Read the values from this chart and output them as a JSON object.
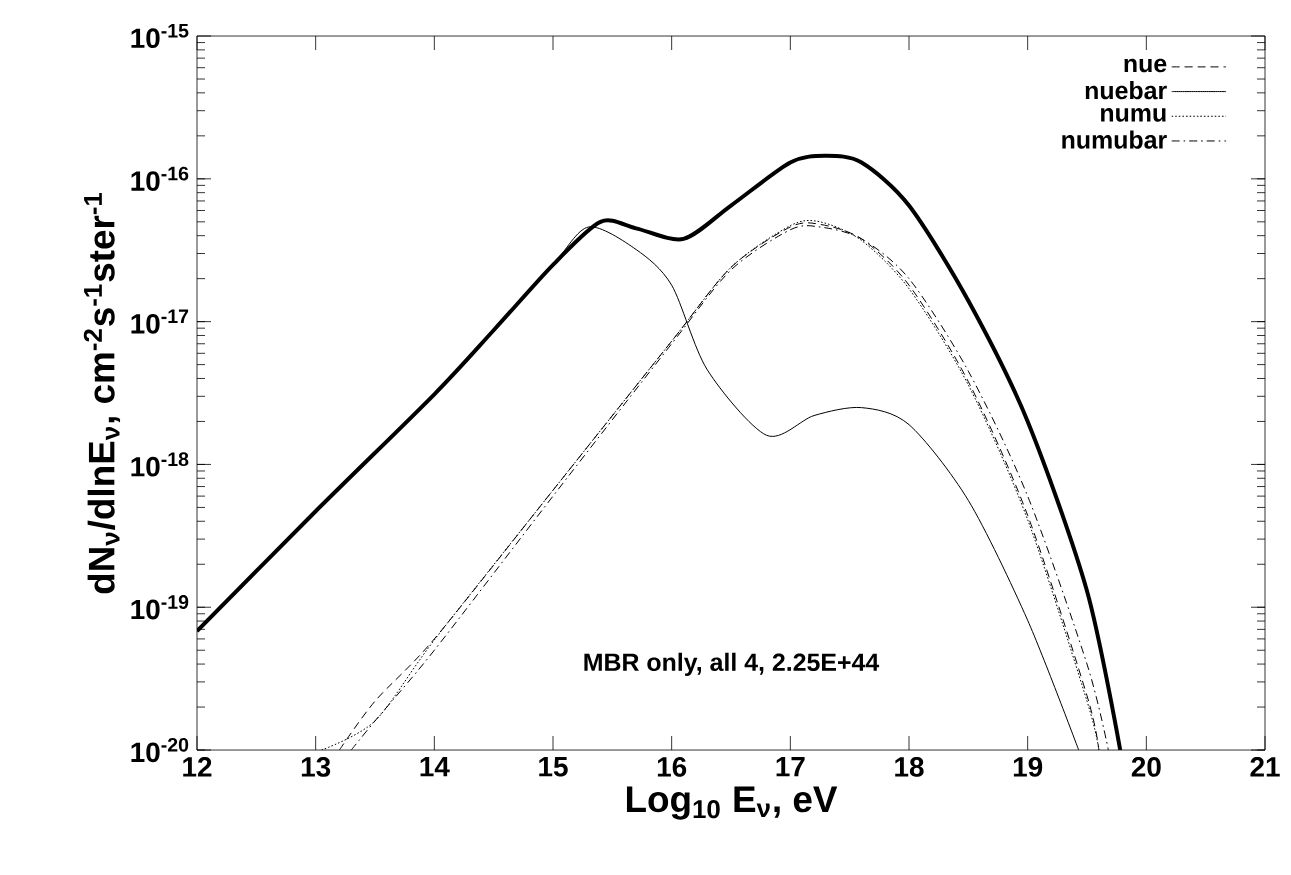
{
  "chart_data": {
    "type": "line",
    "xlabel": "Log$_{10}$ E$_{ν}$, eV",
    "ylabel": "dN$_{ν}$/dlnE$_{ν}$, cm$^{-2}$s$^{-1}$ster$^{-1}$",
    "annotations": [
      "MBR only, all 4, 2.25E+44"
    ],
    "log": "y",
    "xlim": [
      12,
      21
    ],
    "ylim": [
      1e-20,
      1e-15
    ],
    "xticks": [
      12,
      13,
      14,
      15,
      16,
      17,
      18,
      19,
      20,
      21
    ],
    "yticks": [
      {
        "value": 1e-20,
        "label": "10$^{-20}$"
      },
      {
        "value": 1e-19,
        "label": "10$^{-19}$"
      },
      {
        "value": 1e-18,
        "label": "10$^{-18}$"
      },
      {
        "value": 1e-17,
        "label": "10$^{-17}$"
      },
      {
        "value": 1e-16,
        "label": "10$^{-16}$"
      },
      {
        "value": 1e-15,
        "label": "10$^{-15}$"
      }
    ],
    "grid": false,
    "legend": "top right",
    "marker": "none",
    "series": [
      {
        "color": "#000000",
        "line_style": "solid",
        "x": [
          12,
          13,
          14,
          14.5,
          15,
          15.4,
          15.7,
          16.1,
          16.5,
          17,
          17.3,
          17.6,
          18,
          18.5,
          19,
          19.5,
          19.78
        ],
        "values": [
          6.8e-20,
          4.7e-19,
          3.1e-18,
          8.7e-18,
          2.5e-17,
          5e-17,
          4.5e-17,
          3.8e-17,
          6.5e-17,
          1.3e-16,
          1.45e-16,
          1.3e-16,
          6.5e-17,
          1.4e-17,
          2e-18,
          1.3e-19,
          1e-20
        ]
      },
      {
        "name": "nue",
        "color": "#000000",
        "line_style": "dashed",
        "x": [
          13.2,
          13.5,
          14,
          15,
          16,
          16.5,
          17,
          17.25,
          17.6,
          18,
          18.5,
          19,
          19.5,
          19.6
        ],
        "values": [
          1e-20,
          2.2e-20,
          6e-20,
          6.6e-19,
          7.3e-18,
          2.4e-17,
          4.6e-17,
          4.8e-17,
          3.8e-17,
          1.8e-17,
          3.8e-18,
          4.4e-19,
          2.4e-20,
          1e-20
        ]
      },
      {
        "name": "nuebar",
        "color": "#000000",
        "line_style": "solid",
        "x": [
          12,
          13,
          14,
          14.5,
          15,
          15.3,
          15.7,
          16,
          16.3,
          16.8,
          17.2,
          17.6,
          18,
          18.5,
          19,
          19.43
        ],
        "values": [
          6.8e-20,
          4.7e-19,
          3.1e-18,
          8.7e-18,
          2.5e-17,
          4.6e-17,
          3.2e-17,
          1.8e-17,
          4.6e-18,
          1.6e-18,
          2.2e-18,
          2.5e-18,
          1.9e-18,
          5.6e-19,
          8.1e-20,
          1e-20
        ]
      },
      {
        "name": "numu",
        "color": "#000000",
        "line_style": "dotted",
        "x": [
          13.05,
          13.5,
          14,
          15,
          16,
          16.5,
          17,
          17.25,
          17.6,
          18,
          18.5,
          19,
          19.5,
          19.6
        ],
        "values": [
          1e-20,
          1.6e-20,
          5.9e-20,
          6.6e-19,
          7.3e-18,
          2.4e-17,
          4.7e-17,
          5e-17,
          3.7e-17,
          1.7e-17,
          3.6e-18,
          4.1e-19,
          2.2e-20,
          1e-20
        ]
      },
      {
        "name": "numubar",
        "color": "#000000",
        "line_style": "dashdot",
        "x": [
          13.3,
          13.5,
          14,
          15,
          16,
          16.5,
          17,
          17.25,
          17.6,
          18,
          18.5,
          19,
          19.5,
          19.68
        ],
        "values": [
          1e-20,
          1.6e-20,
          5e-20,
          6e-19,
          7e-18,
          2.3e-17,
          4.4e-17,
          4.6e-17,
          3.8e-17,
          2e-17,
          4.5e-18,
          6e-19,
          4e-20,
          1e-20
        ]
      }
    ]
  }
}
